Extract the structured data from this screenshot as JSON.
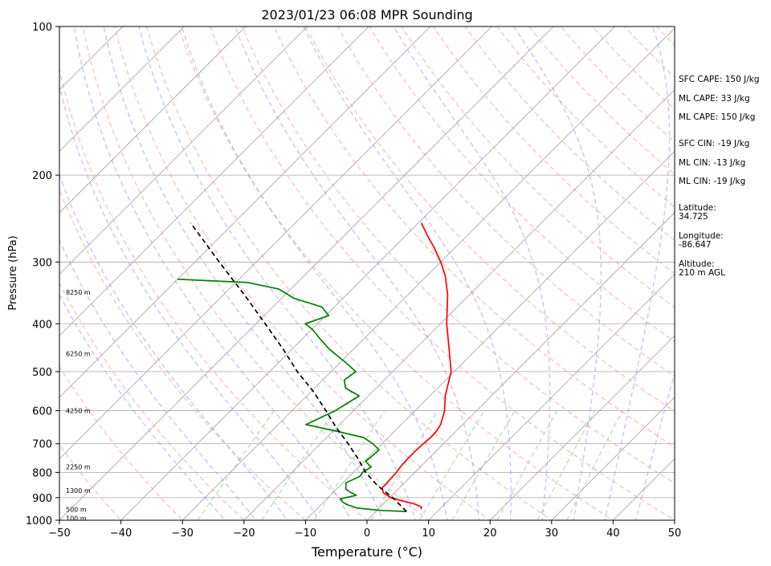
{
  "chart_data": {
    "type": "line",
    "subtype": "skew-T log-P sounding",
    "title": "2023/01/23 06:08 MPR Sounding",
    "xlabel": "Temperature (°C)",
    "ylabel": "Pressure (hPa)",
    "xlim": [
      -50,
      50
    ],
    "ylim": [
      1000,
      100
    ],
    "y_scale": "log",
    "x_ticks": [
      -50,
      -40,
      -30,
      -20,
      -10,
      0,
      10,
      20,
      30,
      40,
      50
    ],
    "x_tick_labels": [
      "−50",
      "−40",
      "−30",
      "−20",
      "−10",
      "0",
      "10",
      "20",
      "30",
      "40",
      "50"
    ],
    "y_ticks": [
      1000,
      900,
      800,
      700,
      600,
      500,
      400,
      300,
      200,
      100
    ],
    "y_tick_labels": [
      "1000",
      "900",
      "800",
      "700",
      "600",
      "500",
      "400",
      "300",
      "200",
      "100"
    ],
    "grid": "horizontal isobars at ticks",
    "colors": {
      "temperature": "#ff0000",
      "dewpoint": "#008000",
      "parcel": "#000000",
      "isotherms": "#a0a0a0",
      "dry_adiabats": "#ff9999",
      "moist_adiabats": "#8c8cff",
      "mixing_ratio": "#8fcf8f"
    },
    "series": [
      {
        "role": "temperature",
        "points": [
          [
            950,
            7.0
          ],
          [
            940,
            6.7
          ],
          [
            930,
            5.5
          ],
          [
            925,
            4.8
          ],
          [
            915,
            2.8
          ],
          [
            900,
            0.2
          ],
          [
            880,
            -1.8
          ],
          [
            860,
            -2.8
          ],
          [
            845,
            -2.8
          ],
          [
            825,
            -2.9
          ],
          [
            800,
            -3.0
          ],
          [
            775,
            -3.3
          ],
          [
            750,
            -3.4
          ],
          [
            720,
            -3.4
          ],
          [
            700,
            -3.3
          ],
          [
            680,
            -3.1
          ],
          [
            660,
            -3.2
          ],
          [
            640,
            -3.6
          ],
          [
            600,
            -5.2
          ],
          [
            560,
            -7.5
          ],
          [
            500,
            -10.5
          ],
          [
            450,
            -14.5
          ],
          [
            400,
            -19.0
          ],
          [
            350,
            -23.5
          ],
          [
            320,
            -27.0
          ],
          [
            300,
            -30.0
          ],
          [
            280,
            -33.5
          ],
          [
            265,
            -36.5
          ],
          [
            250,
            -39.5
          ]
        ]
      },
      {
        "role": "dewpoint",
        "points": [
          [
            960,
            5.0
          ],
          [
            955,
            0.5
          ],
          [
            945,
            -3.5
          ],
          [
            930,
            -5.8
          ],
          [
            920,
            -6.8
          ],
          [
            905,
            -7.8
          ],
          [
            890,
            -5.8
          ],
          [
            880,
            -7.0
          ],
          [
            865,
            -8.5
          ],
          [
            840,
            -9.5
          ],
          [
            815,
            -8.3
          ],
          [
            800,
            -8.5
          ],
          [
            780,
            -8.0
          ],
          [
            760,
            -9.8
          ],
          [
            740,
            -9.6
          ],
          [
            720,
            -9.5
          ],
          [
            700,
            -11.5
          ],
          [
            680,
            -14.0
          ],
          [
            660,
            -19.5
          ],
          [
            640,
            -25.5
          ],
          [
            600,
            -23.0
          ],
          [
            560,
            -21.5
          ],
          [
            540,
            -25.0
          ],
          [
            520,
            -26.5
          ],
          [
            500,
            -26.0
          ],
          [
            480,
            -29.0
          ],
          [
            450,
            -34.0
          ],
          [
            430,
            -37.0
          ],
          [
            410,
            -40.0
          ],
          [
            400,
            -42.0
          ],
          [
            385,
            -39.5
          ],
          [
            370,
            -42.0
          ],
          [
            355,
            -48.0
          ],
          [
            340,
            -52.0
          ],
          [
            330,
            -58.0
          ],
          [
            325,
            -70.0
          ]
        ]
      },
      {
        "role": "parcel",
        "points": [
          [
            960,
            5.0
          ],
          [
            900,
            0.5
          ],
          [
            850,
            -4.0
          ],
          [
            800,
            -8.0
          ],
          [
            750,
            -11.5
          ],
          [
            700,
            -15.5
          ],
          [
            650,
            -20.0
          ],
          [
            600,
            -24.5
          ],
          [
            550,
            -29.5
          ],
          [
            500,
            -35.5
          ],
          [
            450,
            -41.5
          ],
          [
            400,
            -48.5
          ],
          [
            350,
            -56.5
          ],
          [
            300,
            -66.0
          ],
          [
            250,
            -77.0
          ]
        ]
      }
    ],
    "height_labels": [
      {
        "text": "100 m",
        "p": 990
      },
      {
        "text": "500 m",
        "p": 950
      },
      {
        "text": "1300 m",
        "p": 870
      },
      {
        "text": "2250 m",
        "p": 780
      },
      {
        "text": "4250 m",
        "p": 600
      },
      {
        "text": "6250 m",
        "p": 460
      },
      {
        "text": "8250 m",
        "p": 345
      }
    ],
    "annotations": {
      "sfc_cape": "SFC CAPE: 150 J/kg",
      "ml_cape_1": "ML CAPE: 33 J/kg",
      "ml_cape_2": "ML CAPE: 150 J/kg",
      "sfc_cin": "SFC CIN: -19 J/kg",
      "ml_cin_1": "ML CIN: -13 J/kg",
      "ml_cin_2": "ML CIN: -19 J/kg",
      "latitude_label": "Latitude:",
      "latitude_value": "34.725",
      "longitude_label": "Longitude:",
      "longitude_value": "-86.647",
      "altitude_label": "Altitude:",
      "altitude_value": "210 m AGL"
    }
  }
}
